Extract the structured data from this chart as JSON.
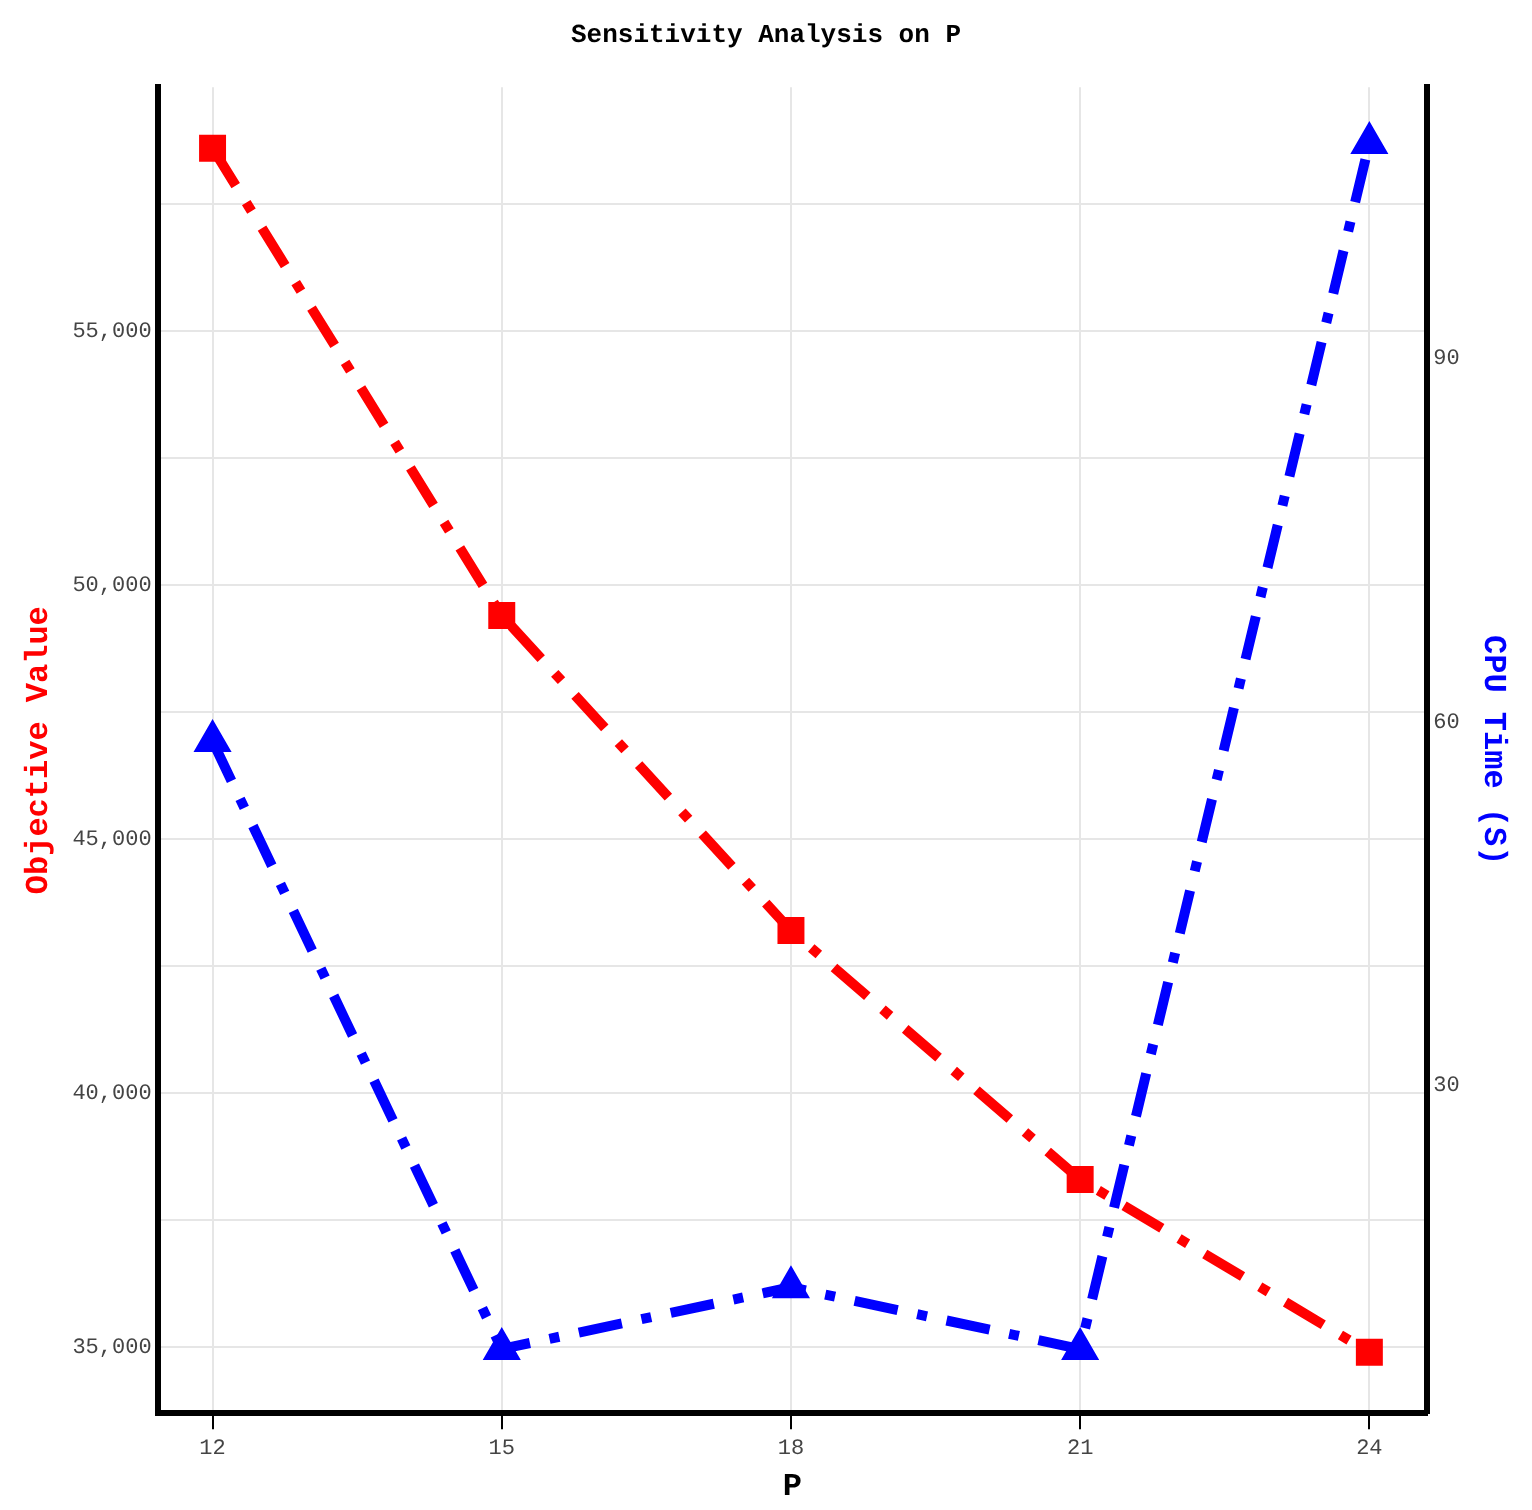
{
  "chart_data": {
    "type": "line",
    "title": "Sensitivity Analysis on P",
    "xlabel": "P",
    "ylabel": "Objective Value",
    "y2label": "CPU Time (S)",
    "x": [
      12,
      15,
      18,
      21,
      24
    ],
    "xlim": [
      11.43,
      24.6
    ],
    "xticks": [
      12,
      15,
      18,
      21,
      24
    ],
    "ylim": [
      33700,
      59800
    ],
    "yticks": [
      {
        "value": 35000,
        "label": "35,000"
      },
      {
        "value": 37500,
        "label": null
      },
      {
        "value": 40000,
        "label": "40,000"
      },
      {
        "value": 42500,
        "label": null
      },
      {
        "value": 45000,
        "label": "45,000"
      },
      {
        "value": 47500,
        "label": null
      },
      {
        "value": 50000,
        "label": "50,000"
      },
      {
        "value": 52500,
        "label": null
      },
      {
        "value": 55000,
        "label": "55,000"
      },
      {
        "value": 57500,
        "label": null
      }
    ],
    "y2lim": [
      2.9,
      112.4
    ],
    "y2ticks": [
      30,
      60,
      90
    ],
    "series": [
      {
        "color": "#ff0000",
        "values": [
          58600,
          49400,
          43200,
          38300,
          34900
        ],
        "marker": "square",
        "line_style": "dashed"
      },
      {
        "color": "#0000ff",
        "values": [
          58.4,
          8.2,
          13.3,
          8.2,
          107.8
        ],
        "axis": "y2",
        "marker": "triangle",
        "line_style": "dashed"
      }
    ],
    "grid": true,
    "legend": false
  }
}
